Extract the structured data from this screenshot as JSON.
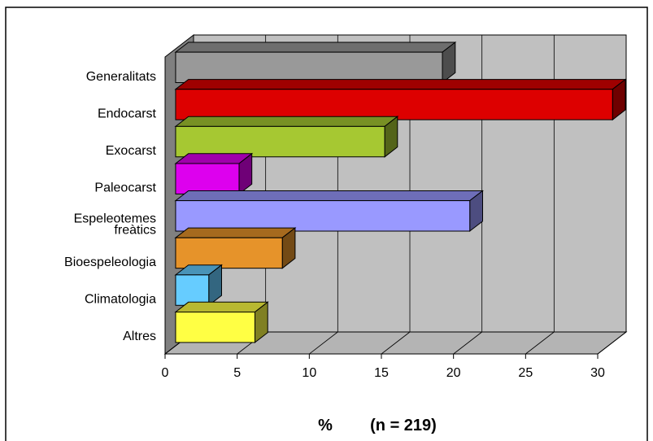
{
  "chart_data": {
    "type": "bar",
    "orientation": "horizontal",
    "three_d": true,
    "categories": [
      "Generalitats",
      "Endocarst",
      "Exocarst",
      "Paleocarst",
      "Espeleotemes freàtics",
      "Bioespeleologia",
      "Climatologia",
      "Altres"
    ],
    "category_lines": [
      [
        "Generalitats"
      ],
      [
        "Endocarst"
      ],
      [
        "Exocarst"
      ],
      [
        "Paleocarst"
      ],
      [
        "Espeleotemes",
        "freàtics"
      ],
      [
        "Bioespeleologia"
      ],
      [
        "Climatologia"
      ],
      [
        "Altres"
      ]
    ],
    "values": [
      18.5,
      30.3,
      14.5,
      4.4,
      20.4,
      7.4,
      2.3,
      5.5
    ],
    "colors": [
      "#999999",
      "#dd0000",
      "#a6c832",
      "#dd00ee",
      "#9999ff",
      "#e6932a",
      "#66ccff",
      "#ffff44"
    ],
    "xlim": [
      0,
      30
    ],
    "x_ticks": [
      0,
      5,
      10,
      15,
      20,
      25,
      30
    ],
    "xlabel_percent": "%",
    "xlabel_n": "(n = 219)",
    "grid": true,
    "wall_color": "#c0c0c0",
    "border_color": "#000000"
  }
}
